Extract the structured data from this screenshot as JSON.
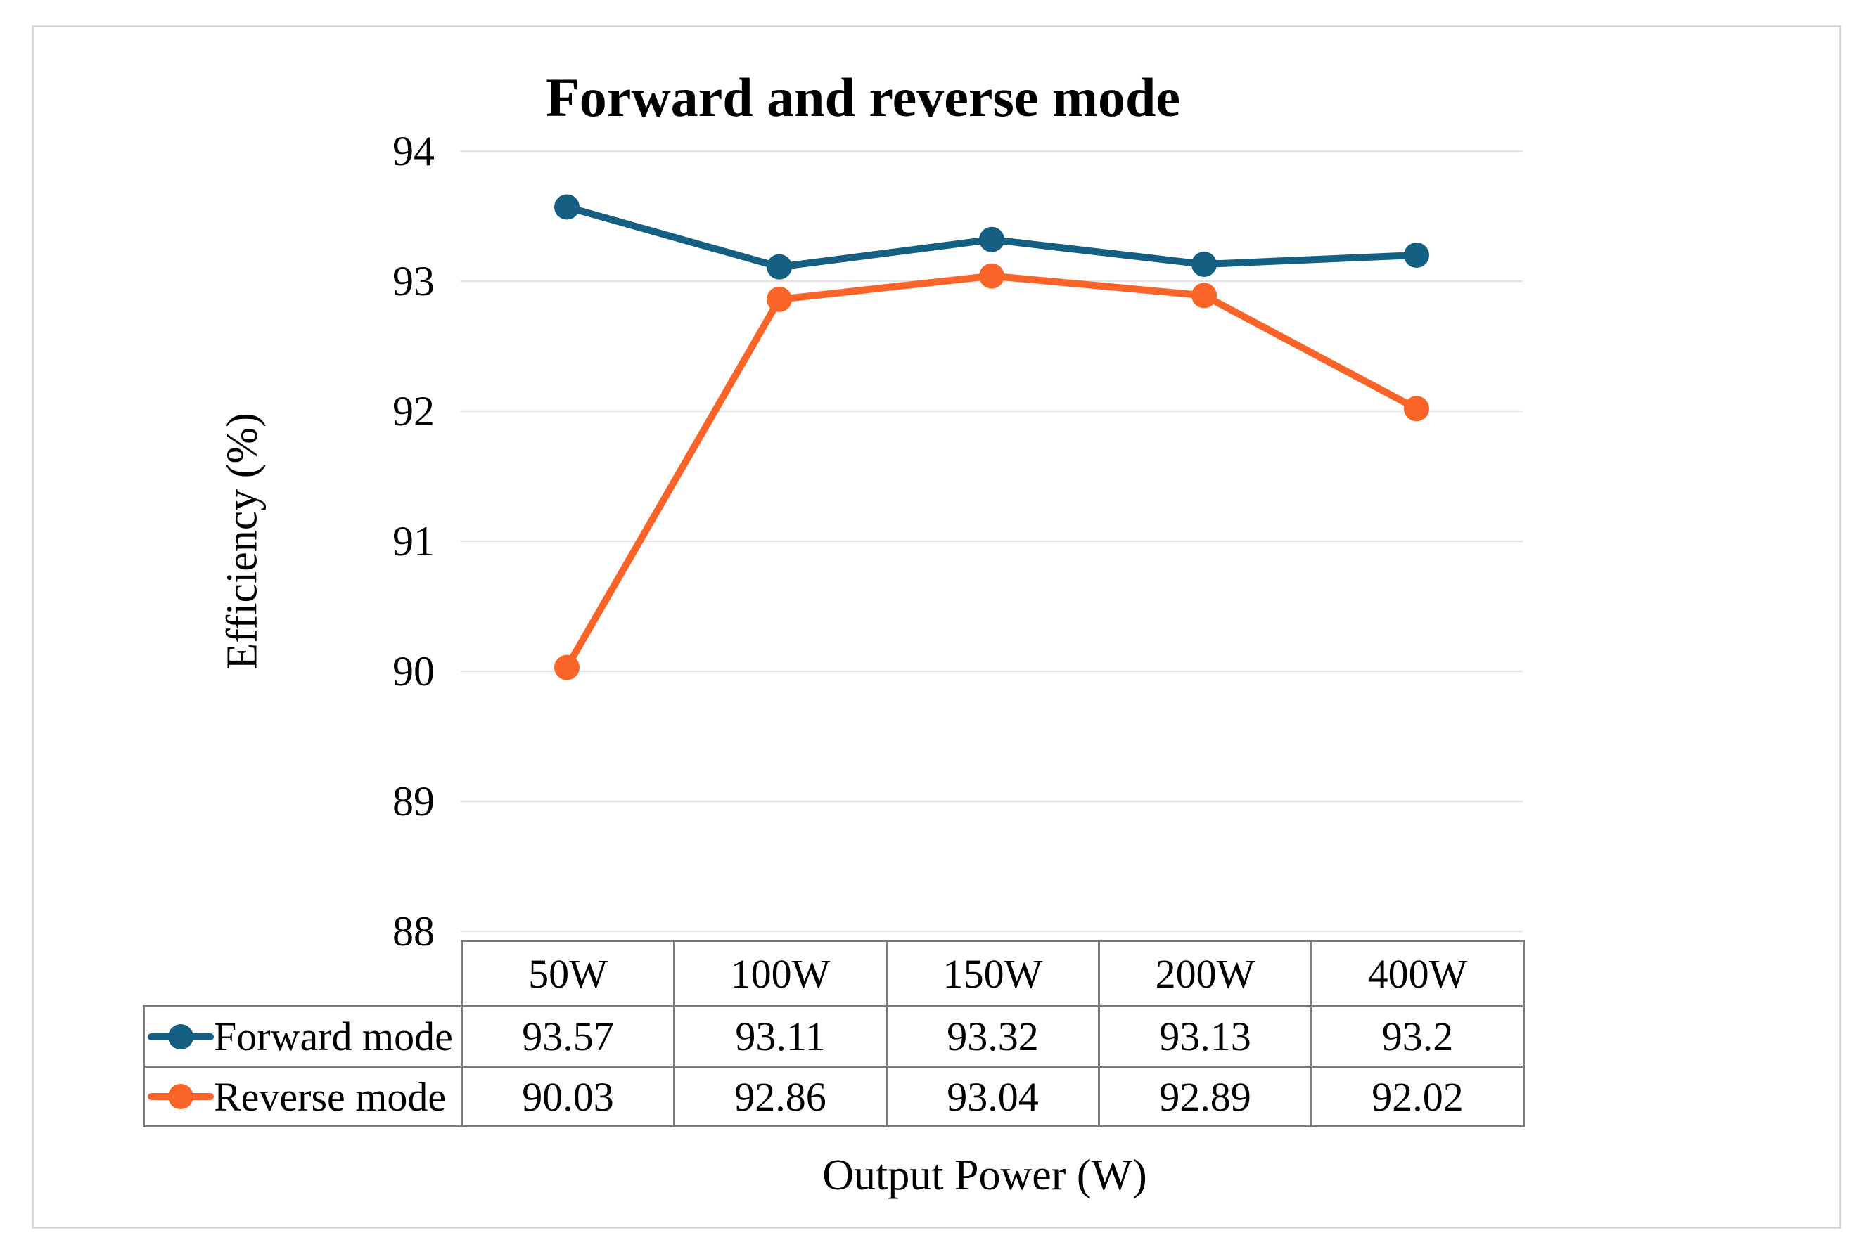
{
  "chart_data": {
    "type": "line",
    "title": "Forward and reverse mode",
    "xlabel": "Output Power (W)",
    "ylabel": "Efficiency (%)",
    "categories": [
      "50W",
      "100W",
      "150W",
      "200W",
      "400W"
    ],
    "series": [
      {
        "name": "Forward mode",
        "color": "#156082",
        "values": [
          93.57,
          93.11,
          93.32,
          93.13,
          93.2
        ]
      },
      {
        "name": "Reverse mode",
        "color": "#FA6428",
        "values": [
          90.03,
          92.86,
          93.04,
          92.89,
          92.02
        ]
      }
    ],
    "ylim": [
      88,
      94
    ],
    "yticks": [
      94,
      93,
      92,
      91,
      90,
      89,
      88
    ],
    "grid": true,
    "gridline_color": "#e4e4e4",
    "legend_position": "table-left",
    "marker": "circle"
  }
}
